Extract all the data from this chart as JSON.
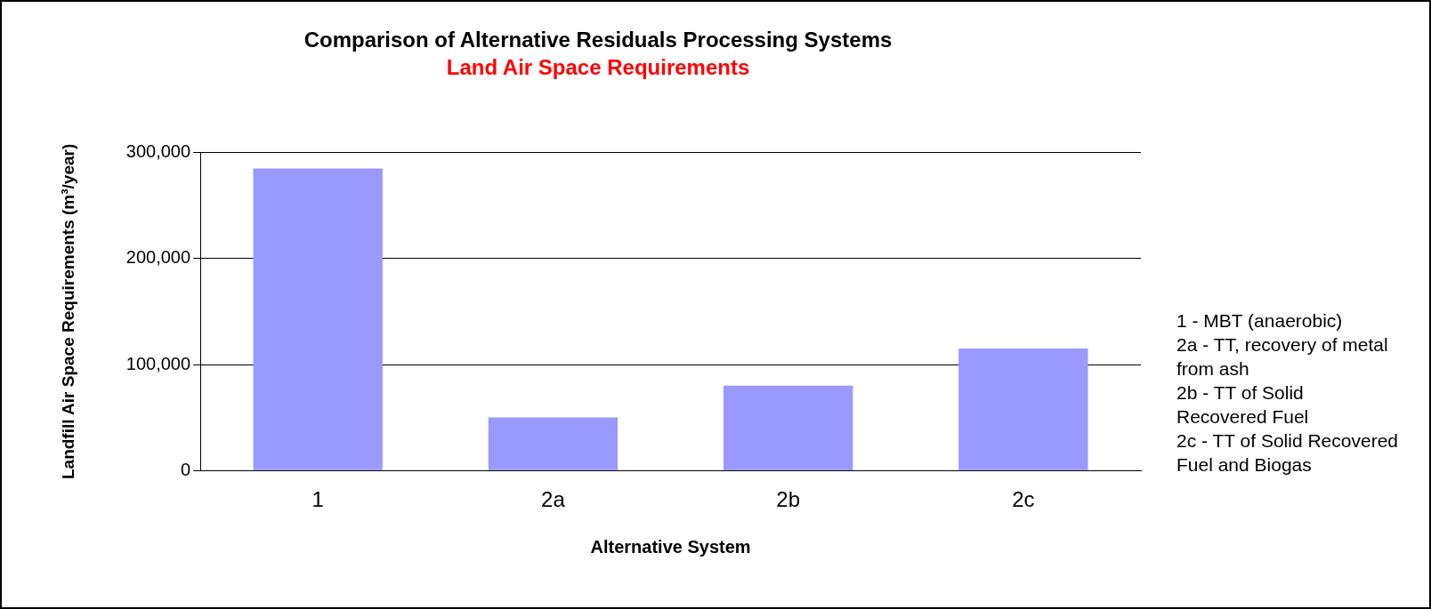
{
  "chart_data": {
    "type": "bar",
    "title": "Comparison of Alternative Residuals Processing Systems",
    "subtitle": "Land Air Space Requirements",
    "xlabel": "Alternative System",
    "ylabel": "Landfill Air Space Requirements (m³/year)",
    "categories": [
      "1",
      "2a",
      "2b",
      "2c"
    ],
    "values": [
      285000,
      50000,
      80000,
      115000
    ],
    "color": "#9999ff",
    "ylim": [
      0,
      300000
    ],
    "yticks": [
      {
        "value": 0,
        "label": "0"
      },
      {
        "value": 100000,
        "label": "100,000"
      },
      {
        "value": 200000,
        "label": "200,000"
      },
      {
        "value": 300000,
        "label": "300,000"
      }
    ],
    "grid": "y",
    "annotations": [
      "1 - MBT (anaerobic)",
      "2a - TT, recovery of metal from ash",
      "2b - TT of Solid Recovered Fuel",
      "2c - TT of Solid Recovered Fuel and Biogas"
    ]
  }
}
